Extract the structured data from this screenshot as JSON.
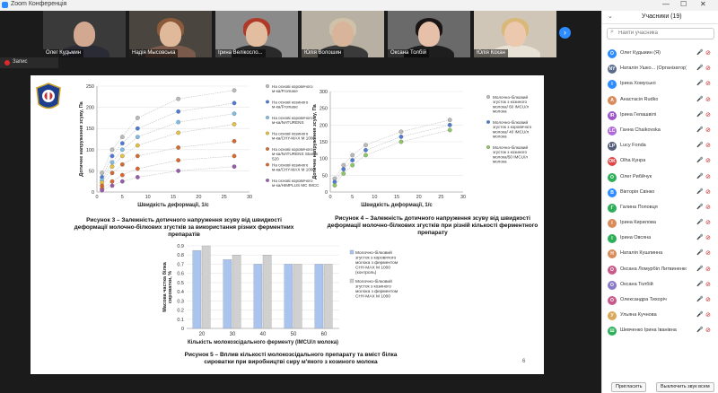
{
  "window": {
    "title": "Zoom Конференція",
    "minimize": "—",
    "maximize": "☐",
    "close": "✕"
  },
  "thumbnails": [
    {
      "name": "Олег Кудьмин"
    },
    {
      "name": "Надія Мысовська"
    },
    {
      "name": "Ірина Велікосло..."
    },
    {
      "name": "Юлія Волошин"
    },
    {
      "name": "Оксана Толбій"
    },
    {
      "name": "Юлія Кохан"
    }
  ],
  "recording": {
    "label": "Запис"
  },
  "participants_panel": {
    "title": "Учасники (19)",
    "search_placeholder": "Найти учасника",
    "participants": [
      {
        "initials": "О",
        "name": "Олег Кудьмин (Я)",
        "color": "#2d8cff"
      },
      {
        "initials": "NY",
        "name": "Наталія Ушко... (Організатор)",
        "color": "#5a6b8c"
      },
      {
        "initials": "І",
        "name": "Ірина Хомусько",
        "color": "#2d8cff"
      },
      {
        "initials": "A",
        "name": "Анастасія Rudko",
        "color": "#d98b5a"
      },
      {
        "initials": "IR",
        "name": "Ірина Гелашвілі",
        "color": "#9c54c9"
      },
      {
        "initials": "LC",
        "name": "Ганна Chaikovska",
        "color": "#b06ad9"
      },
      {
        "initials": "LP",
        "name": "Lucy Fonda",
        "color": "#555f7a"
      },
      {
        "initials": "OK",
        "name": "Оlha Кунра",
        "color": "#e04848"
      },
      {
        "initials": "O",
        "name": "Олег Рибйчук",
        "color": "#2fae5a"
      },
      {
        "initials": "В",
        "name": "Вікторія Свінко",
        "color": "#2d8cff"
      },
      {
        "initials": "Г",
        "name": "Галина Поповця",
        "color": "#2fae5a"
      },
      {
        "initials": "І",
        "name": "Ірина Кирилова",
        "color": "#d98b5a"
      },
      {
        "initials": "І",
        "name": "Ірина Овсяна",
        "color": "#2fae5a"
      },
      {
        "initials": "Н",
        "name": "Наталія Кушлинна",
        "color": "#d98b5a"
      },
      {
        "initials": "О",
        "name": "Оксана Ломурбіл Литвиненко",
        "color": "#c85a8a"
      },
      {
        "initials": "О",
        "name": "Оксана Толбій",
        "color": "#8a7ac9"
      },
      {
        "initials": "О",
        "name": "Олександра Тихоріч",
        "color": "#c85a8a"
      },
      {
        "initials": "У",
        "name": "Ульяна Кучнова",
        "color": "#d9a85a"
      },
      {
        "initials": "Ш",
        "name": "Шевченко Ірина Іванівна",
        "color": "#2fae5a"
      }
    ],
    "invite_button": "Пригласить",
    "mute_all_button": "Выключить звук всем"
  },
  "slide": {
    "page_number": "6",
    "figure3": {
      "caption_line1": "Рисунок 3 – Залежність дотичного напруження зсуву від швидкості",
      "caption_line2": "деформації молочно-білкових згустків за використання різних ферментних",
      "caption_line3": "препаратів",
      "xlabel": "Швидкість деформації, 1/с",
      "ylabel": "Дотичне напруження зсуву, Па"
    },
    "figure4": {
      "caption_line1": "Рисунок 4 – Залежність дотичного напруження зсуву від швидкості",
      "caption_line2": "деформації молочно-білкових згустків при різній кількості ферментного препарату",
      "xlabel": "Швидкість деформації, 1/с",
      "ylabel": "Дотичне напруження зсуву, Па"
    },
    "figure5": {
      "caption_line1": "Рисунок 5 – Вплив кількості молокозсідального препарату та вміст білка",
      "caption_line2": "сироватки при виробництві сиру м'якого з козиного молока",
      "xlabel": "Кількість молокозсідального ферменту (IMCU/л молока)",
      "ylabel": "Масова частка білка сироватки, %"
    }
  },
  "chart_data": [
    {
      "type": "scatter",
      "title": "",
      "xlabel": "Швидкість деформації, 1/с",
      "ylabel": "Дотичне напруження зсуву, Па",
      "xlim": [
        0,
        30
      ],
      "ylim": [
        0,
        250
      ],
      "xticks": [
        0,
        5,
        10,
        15,
        20,
        25,
        30
      ],
      "yticks": [
        0,
        50,
        100,
        150,
        200,
        250
      ],
      "series": [
        {
          "name": "На основі коровячого м-ка/Fromase",
          "color": "#bbbbbb",
          "x": [
            1,
            3,
            5,
            8,
            16,
            27
          ],
          "y": [
            45,
            100,
            130,
            175,
            220,
            240
          ]
        },
        {
          "name": "На основі козиного м-ка/Fromase",
          "color": "#4a7bd9",
          "x": [
            1,
            3,
            5,
            8,
            16,
            27
          ],
          "y": [
            35,
            85,
            115,
            150,
            190,
            210
          ]
        },
        {
          "name": "На основі коровячого м-ка/NATURENS",
          "color": "#7dbde8",
          "x": [
            1,
            3,
            5,
            8,
            16,
            27
          ],
          "y": [
            28,
            70,
            100,
            130,
            165,
            185
          ]
        },
        {
          "name": "На основі козиного м-ка/CHY-MAX M 1000",
          "color": "#e8c23a",
          "x": [
            1,
            3,
            5,
            8,
            16,
            27
          ],
          "y": [
            22,
            60,
            85,
            110,
            140,
            160
          ]
        },
        {
          "name": "На основі коровячого м-ка/NATURENS Stamm 520",
          "color": "#d66a2c",
          "x": [
            1,
            3,
            5,
            8,
            16,
            27
          ],
          "y": [
            15,
            45,
            65,
            85,
            105,
            120
          ]
        },
        {
          "name": "На основі козиного м-ка/CHY-MAX M 1000",
          "color": "#e0652a",
          "x": [
            1,
            3,
            5,
            8,
            16,
            27
          ],
          "y": [
            8,
            25,
            40,
            55,
            75,
            85
          ]
        },
        {
          "name": "На основі коровячого м-ка/HIMPLUS MC IMCC",
          "color": "#9a5ab0",
          "x": [
            1,
            3,
            5,
            8,
            16,
            27
          ],
          "y": [
            4,
            15,
            25,
            35,
            50,
            60
          ]
        }
      ]
    },
    {
      "type": "scatter",
      "title": "",
      "xlabel": "Швидкість деформації, 1/с",
      "ylabel": "Дотичне напруження зсуву, Па",
      "xlim": [
        0,
        30
      ],
      "ylim": [
        0,
        300
      ],
      "xticks": [
        0,
        5,
        10,
        15,
        20,
        25,
        30
      ],
      "yticks": [
        0,
        50,
        100,
        150,
        200,
        250,
        300
      ],
      "series": [
        {
          "name": "Молочно-білковий згусток з козиного молока/ 60 IMCU/л молока",
          "color": "#bbbbbb",
          "x": [
            1,
            3,
            5,
            8,
            16,
            27
          ],
          "y": [
            40,
            80,
            110,
            140,
            180,
            215
          ]
        },
        {
          "name": "Молочно-білковий згусток з коровячого молока/ 40 IMCU/л молока",
          "color": "#4a7bd9",
          "x": [
            1,
            3,
            5,
            8,
            16,
            27
          ],
          "y": [
            30,
            68,
            95,
            125,
            165,
            200
          ]
        },
        {
          "name": "Молочно-білковий згусток з козиного молока/50 IMCU/л молока",
          "color": "#8dc860",
          "x": [
            1,
            3,
            5,
            8,
            16,
            27
          ],
          "y": [
            20,
            55,
            80,
            110,
            150,
            185
          ]
        }
      ]
    },
    {
      "type": "bar",
      "title": "",
      "xlabel": "Кількість молокозсідального ферменту (IMCU/л молока)",
      "ylabel": "Масова частка білка сироватки, %",
      "ylim": [
        0,
        0.9
      ],
      "yticks": [
        0,
        0.1,
        0.2,
        0.3,
        0.4,
        0.5,
        0.6,
        0.7,
        0.8,
        0.9
      ],
      "categories": [
        "20",
        "30",
        "40",
        "50",
        "60"
      ],
      "series": [
        {
          "name": "Молочно-білковий згусток з коровячого молока з ферментом CHY-MAX M 1000 (контроль)",
          "color": "#aac4f0",
          "values": [
            0.85,
            0.75,
            0.7,
            0.7,
            0.7
          ]
        },
        {
          "name": "Молочно-білковий згусток з козиного молока з ферментом CHY-MAX M 1000",
          "color": "#d0d0d0",
          "values": [
            0.9,
            0.8,
            0.8,
            0.7,
            0.7
          ]
        }
      ]
    }
  ]
}
